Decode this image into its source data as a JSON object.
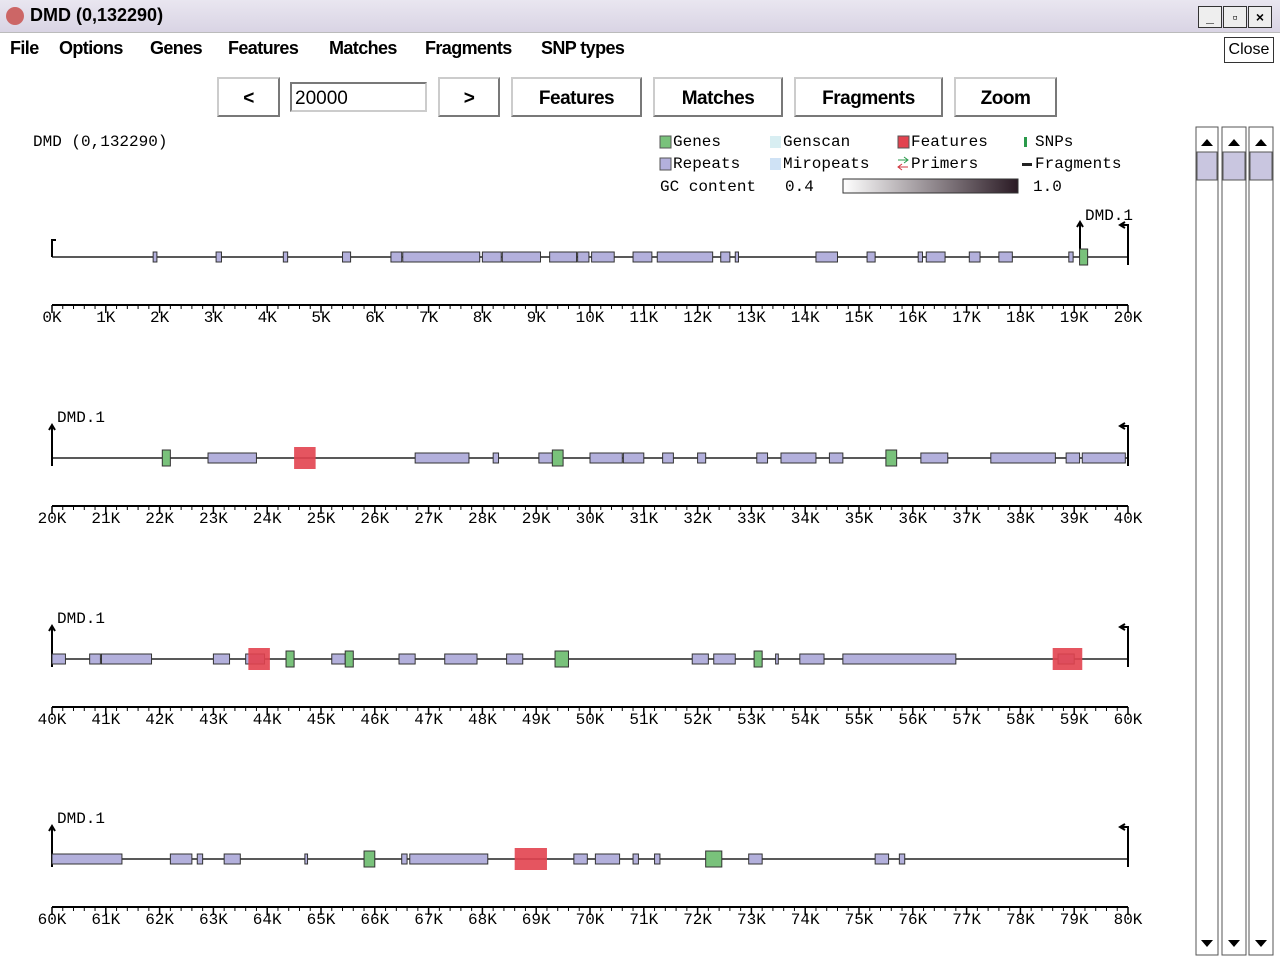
{
  "window": {
    "title": "DMD (0,132290)"
  },
  "menu": [
    "File",
    "Options",
    "Genes",
    "Features",
    "Matches",
    "Fragments",
    "SNP types"
  ],
  "close": "Close",
  "toolbar": {
    "prev": "<",
    "step": "20000",
    "next": ">",
    "buttons": [
      "Features",
      "Matches",
      "Fragments",
      "Zoom"
    ]
  },
  "view": {
    "title": "DMD (0,132290)"
  },
  "legend": {
    "items": [
      {
        "label": "Genes",
        "color": "#79c27b"
      },
      {
        "label": "Genscan",
        "color": "#d8eef2"
      },
      {
        "label": "Features",
        "color": "#e2434f"
      },
      {
        "label": "SNPs",
        "color": "#2a9a4a"
      },
      {
        "label": "Repeats",
        "color": "#b3b0dc"
      },
      {
        "label": "Miropeats",
        "color": "#cfe2f5"
      },
      {
        "label": "Primers",
        "color": "#d0343c"
      },
      {
        "label": "Fragments",
        "color": "#222222"
      }
    ],
    "gc": {
      "label": "GC content",
      "min": "0.4",
      "max": "1.0"
    }
  },
  "tracks": [
    {
      "label": "DMD.1",
      "range": [
        0,
        20
      ],
      "ticks": [
        {
          "value": 0,
          "label": "0K"
        },
        {
          "value": 1,
          "label": "1K"
        },
        {
          "value": 2,
          "label": "2K"
        },
        {
          "value": 3,
          "label": "3K"
        },
        {
          "value": 4,
          "label": "4K"
        },
        {
          "value": 5,
          "label": "5K"
        },
        {
          "value": 6,
          "label": "6K"
        },
        {
          "value": 7,
          "label": "7K"
        },
        {
          "value": 8,
          "label": "8K"
        },
        {
          "value": 9,
          "label": "9K"
        },
        {
          "value": 10,
          "label": "10K"
        },
        {
          "value": 11,
          "label": "11K"
        },
        {
          "value": 12,
          "label": "12K"
        },
        {
          "value": 13,
          "label": "13K"
        },
        {
          "value": 14,
          "label": "14K"
        },
        {
          "value": 15,
          "label": "15K"
        },
        {
          "value": 16,
          "label": "16K"
        },
        {
          "value": 17,
          "label": "17K"
        },
        {
          "value": 18,
          "label": "18K"
        },
        {
          "value": 19,
          "label": "19K"
        },
        {
          "value": 20,
          "label": "20K"
        }
      ],
      "layers": [
        {
          "color": "#b3b0dc",
          "spans": [
            [
              1.88,
              1.95
            ],
            [
              3.05,
              3.15
            ],
            [
              4.3,
              4.38
            ],
            [
              5.4,
              5.55
            ],
            [
              6.3,
              6.5
            ],
            [
              6.52,
              7.95
            ],
            [
              8.0,
              8.35
            ],
            [
              8.37,
              9.08
            ],
            [
              9.25,
              9.75
            ],
            [
              9.77,
              9.98
            ],
            [
              10.03,
              10.45
            ],
            [
              10.8,
              11.15
            ],
            [
              11.25,
              12.28
            ],
            [
              12.43,
              12.6
            ],
            [
              12.7,
              12.76
            ],
            [
              14.2,
              14.6
            ],
            [
              15.15,
              15.3
            ],
            [
              16.1,
              16.18
            ],
            [
              16.25,
              16.6
            ],
            [
              17.05,
              17.25
            ],
            [
              17.6,
              17.85
            ],
            [
              18.9,
              18.98
            ]
          ]
        },
        {
          "color": "#79c27b",
          "spans": [
            [
              19.1,
              19.25
            ]
          ]
        },
        {
          "color": "#e2434f",
          "spans": []
        }
      ]
    },
    {
      "label": "DMD.1",
      "range": [
        20,
        40
      ],
      "ticks": [
        {
          "value": 20,
          "label": "20K"
        },
        {
          "value": 21,
          "label": "21K"
        },
        {
          "value": 22,
          "label": "22K"
        },
        {
          "value": 23,
          "label": "23K"
        },
        {
          "value": 24,
          "label": "24K"
        },
        {
          "value": 25,
          "label": "25K"
        },
        {
          "value": 26,
          "label": "26K"
        },
        {
          "value": 27,
          "label": "27K"
        },
        {
          "value": 28,
          "label": "28K"
        },
        {
          "value": 29,
          "label": "29K"
        },
        {
          "value": 30,
          "label": "30K"
        },
        {
          "value": 31,
          "label": "31K"
        },
        {
          "value": 32,
          "label": "32K"
        },
        {
          "value": 33,
          "label": "33K"
        },
        {
          "value": 34,
          "label": "34K"
        },
        {
          "value": 35,
          "label": "35K"
        },
        {
          "value": 36,
          "label": "36K"
        },
        {
          "value": 37,
          "label": "37K"
        },
        {
          "value": 38,
          "label": "38K"
        },
        {
          "value": 39,
          "label": "39K"
        },
        {
          "value": 40,
          "label": "40K"
        }
      ],
      "layers": [
        {
          "color": "#b3b0dc",
          "spans": [
            [
              22.9,
              23.8
            ],
            [
              26.75,
              27.75
            ],
            [
              28.2,
              28.3
            ],
            [
              29.05,
              29.3
            ],
            [
              30.0,
              30.6
            ],
            [
              30.62,
              31.0
            ],
            [
              31.35,
              31.55
            ],
            [
              32.0,
              32.15
            ],
            [
              33.1,
              33.3
            ],
            [
              33.55,
              34.2
            ],
            [
              34.45,
              34.7
            ],
            [
              36.15,
              36.65
            ],
            [
              37.45,
              38.65
            ],
            [
              38.85,
              39.1
            ],
            [
              39.15,
              39.95
            ]
          ]
        },
        {
          "color": "#79c27b",
          "spans": [
            [
              22.05,
              22.2
            ],
            [
              29.3,
              29.5
            ],
            [
              35.5,
              35.7
            ]
          ]
        },
        {
          "color": "#e2434f",
          "spans": [
            [
              24.5,
              24.9
            ]
          ]
        }
      ]
    },
    {
      "label": "DMD.1",
      "range": [
        40,
        60
      ],
      "ticks": [
        {
          "value": 40,
          "label": "40K"
        },
        {
          "value": 41,
          "label": "41K"
        },
        {
          "value": 42,
          "label": "42K"
        },
        {
          "value": 43,
          "label": "43K"
        },
        {
          "value": 44,
          "label": "44K"
        },
        {
          "value": 45,
          "label": "45K"
        },
        {
          "value": 46,
          "label": "46K"
        },
        {
          "value": 47,
          "label": "47K"
        },
        {
          "value": 48,
          "label": "48K"
        },
        {
          "value": 49,
          "label": "49K"
        },
        {
          "value": 50,
          "label": "50K"
        },
        {
          "value": 51,
          "label": "51K"
        },
        {
          "value": 52,
          "label": "52K"
        },
        {
          "value": 53,
          "label": "53K"
        },
        {
          "value": 54,
          "label": "54K"
        },
        {
          "value": 55,
          "label": "55K"
        },
        {
          "value": 56,
          "label": "56K"
        },
        {
          "value": 57,
          "label": "57K"
        },
        {
          "value": 58,
          "label": "58K"
        },
        {
          "value": 59,
          "label": "59K"
        },
        {
          "value": 60,
          "label": "60K"
        }
      ],
      "layers": [
        {
          "color": "#b3b0dc",
          "spans": [
            [
              40.0,
              40.25
            ],
            [
              40.7,
              40.9
            ],
            [
              40.92,
              41.85
            ],
            [
              43.0,
              43.3
            ],
            [
              43.6,
              43.95
            ],
            [
              45.2,
              45.45
            ],
            [
              46.45,
              46.75
            ],
            [
              47.3,
              47.9
            ],
            [
              48.45,
              48.75
            ],
            [
              51.9,
              52.2
            ],
            [
              52.3,
              52.7
            ],
            [
              53.45,
              53.5
            ],
            [
              53.9,
              54.35
            ],
            [
              54.7,
              56.8
            ],
            [
              58.7,
              59.0
            ]
          ]
        },
        {
          "color": "#79c27b",
          "spans": [
            [
              44.35,
              44.5
            ],
            [
              45.45,
              45.6
            ],
            [
              49.35,
              49.6
            ],
            [
              53.05,
              53.2
            ]
          ]
        },
        {
          "color": "#e2434f",
          "spans": [
            [
              43.65,
              44.05
            ],
            [
              58.6,
              59.15
            ]
          ]
        }
      ]
    },
    {
      "label": "DMD.1",
      "range": [
        60,
        80
      ],
      "ticks": [
        {
          "value": 60,
          "label": "60K"
        },
        {
          "value": 61,
          "label": "61K"
        },
        {
          "value": 62,
          "label": "62K"
        },
        {
          "value": 63,
          "label": "63K"
        },
        {
          "value": 64,
          "label": "64K"
        },
        {
          "value": 65,
          "label": "65K"
        },
        {
          "value": 66,
          "label": "66K"
        },
        {
          "value": 67,
          "label": "67K"
        },
        {
          "value": 68,
          "label": "68K"
        },
        {
          "value": 69,
          "label": "69K"
        },
        {
          "value": 70,
          "label": "70K"
        },
        {
          "value": 71,
          "label": "71K"
        },
        {
          "value": 72,
          "label": "72K"
        },
        {
          "value": 73,
          "label": "73K"
        },
        {
          "value": 74,
          "label": "74K"
        },
        {
          "value": 75,
          "label": "75K"
        },
        {
          "value": 76,
          "label": "76K"
        },
        {
          "value": 77,
          "label": "77K"
        },
        {
          "value": 78,
          "label": "78K"
        },
        {
          "value": 79,
          "label": "79K"
        },
        {
          "value": 80,
          "label": "80K"
        }
      ],
      "layers": [
        {
          "color": "#b3b0dc",
          "spans": [
            [
              60.0,
              61.3
            ],
            [
              62.2,
              62.6
            ],
            [
              62.7,
              62.8
            ],
            [
              63.2,
              63.5
            ],
            [
              64.7,
              64.75
            ],
            [
              66.5,
              66.6
            ],
            [
              66.65,
              68.1
            ],
            [
              69.7,
              69.95
            ],
            [
              70.1,
              70.55
            ],
            [
              70.8,
              70.9
            ],
            [
              71.2,
              71.3
            ],
            [
              72.95,
              73.2
            ],
            [
              75.3,
              75.55
            ],
            [
              75.75,
              75.85
            ]
          ]
        },
        {
          "color": "#79c27b",
          "spans": [
            [
              65.8,
              66.0
            ],
            [
              72.15,
              72.45
            ]
          ]
        },
        {
          "color": "#e2434f",
          "spans": [
            [
              68.6,
              69.2
            ]
          ]
        }
      ]
    }
  ]
}
